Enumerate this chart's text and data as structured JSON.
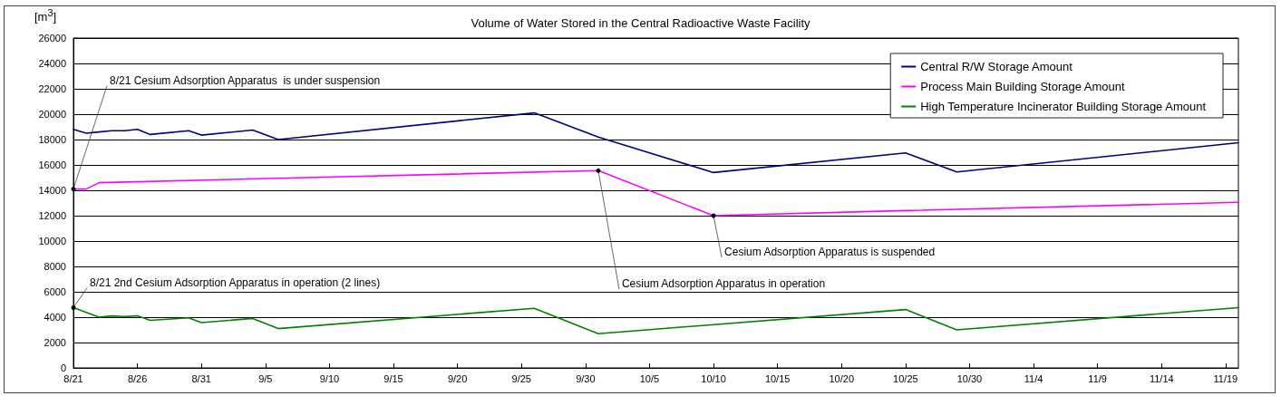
{
  "chart_data": {
    "type": "line",
    "title": "Volume of Water Stored in the Central Radioactive Waste Facility",
    "ylabel": "[m$^{3}$]",
    "series": [
      {
        "name": "Central R/W Storage Amount",
        "color": "#000080",
        "x": [
          "--08-21",
          "--08-22",
          "--08-23",
          "--08-24",
          "--08-25",
          "--08-26",
          "--08-27",
          "--08-30",
          "--08-31",
          "--09-04",
          "--09-06",
          "--09-26",
          "--10-01",
          "--10-10",
          "--10-25",
          "--10-29",
          "--11-20"
        ],
        "values": [
          18800,
          18500,
          18600,
          18700,
          18700,
          18800,
          18400,
          18700,
          18350,
          18750,
          18000,
          20100,
          18200,
          15400,
          16950,
          15450,
          17750
        ]
      },
      {
        "name": "Process Main Building Storage Amount",
        "color": "#ff00ff",
        "x": [
          "--08-21",
          "--08-22",
          "--08-23",
          "--09-06",
          "--10-01",
          "--10-10",
          "--10-25",
          "--11-20"
        ],
        "values": [
          14100,
          14100,
          14600,
          14950,
          15550,
          12000,
          12400,
          13050
        ]
      },
      {
        "name": "High Temperature Incinerator Building Storage Amount",
        "color": "#008000",
        "x": [
          "--08-21",
          "--08-23",
          "--08-24",
          "--08-25",
          "--08-26",
          "--08-27",
          "--08-30",
          "--08-31",
          "--09-04",
          "--09-06",
          "--09-26",
          "--10-01",
          "--10-25",
          "--10-29",
          "--11-20"
        ],
        "values": [
          4750,
          4000,
          4100,
          4050,
          4100,
          3750,
          3950,
          3570,
          3900,
          3100,
          4700,
          2700,
          4600,
          3000,
          4750
        ]
      }
    ],
    "xlim": [
      "--08-21",
      "--11-20"
    ],
    "xticks": [
      {
        "value": "--08-21",
        "label": "8/21"
      },
      {
        "value": "--08-26",
        "label": "8/26"
      },
      {
        "value": "--08-31",
        "label": "8/31"
      },
      {
        "value": "--09-05",
        "label": "9/5"
      },
      {
        "value": "--09-10",
        "label": "9/10"
      },
      {
        "value": "--09-15",
        "label": "9/15"
      },
      {
        "value": "--09-20",
        "label": "9/20"
      },
      {
        "value": "--09-25",
        "label": "9/25"
      },
      {
        "value": "--09-30",
        "label": "9/30"
      },
      {
        "value": "--10-05",
        "label": "10/5"
      },
      {
        "value": "--10-10",
        "label": "10/10"
      },
      {
        "value": "--10-15",
        "label": "10/15"
      },
      {
        "value": "--10-20",
        "label": "10/20"
      },
      {
        "value": "--10-25",
        "label": "10/25"
      },
      {
        "value": "--10-30",
        "label": "10/30"
      },
      {
        "value": "--11-04",
        "label": "11/4"
      },
      {
        "value": "--11-09",
        "label": "11/9"
      },
      {
        "value": "--11-14",
        "label": "11/14"
      },
      {
        "value": "--11-19",
        "label": "11/19"
      }
    ],
    "ylim": [
      0,
      26000
    ],
    "yticks": [
      0,
      2000,
      4000,
      6000,
      8000,
      10000,
      12000,
      14000,
      16000,
      18000,
      20000,
      22000,
      24000,
      26000
    ],
    "grid": "y",
    "legend": "top right",
    "marker": "none",
    "line_style": "solid",
    "annotations": [
      {
        "text": "8/21 Cesium Adsorption Apparatus  is under suspension",
        "x": "--08-21",
        "y": 14100
      },
      {
        "text": "8/21 2nd Cesium Adsorption Apparatus in operation (2 lines)",
        "x": "--08-21",
        "y": 4750
      },
      {
        "text": "Cesium Adsorption Apparatus in operation",
        "x": "--10-01",
        "y": 15550
      },
      {
        "text": "Cesium Adsorption Apparatus is suspended",
        "x": "--10-10",
        "y": 12000
      }
    ]
  }
}
